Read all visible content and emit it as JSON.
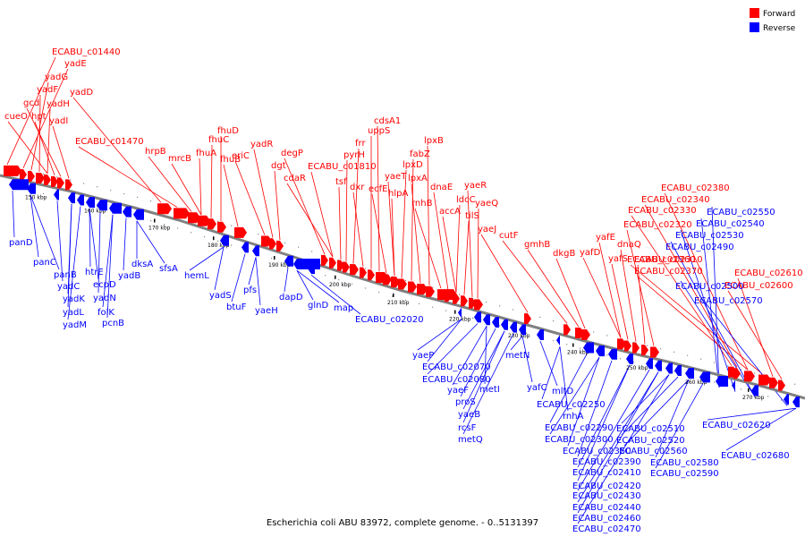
{
  "caption": "Escherichia coli ABU 83972, complete genome. - 0..5131397",
  "legend": [
    {
      "label": "Forward",
      "color": "#ff0000"
    },
    {
      "label": "Reverse",
      "color": "#0000ff"
    }
  ],
  "colors": {
    "forward": "#ff0000",
    "reverse": "#0000ff",
    "backbone": "#808080"
  },
  "tick_labels": [
    "150 kbp",
    "160 kbp",
    "170 kbp",
    "180 kbp",
    "190 kbp",
    "200 kbp",
    "210 kbp",
    "220 kbp",
    "230 kbp",
    "240 kbp",
    "250 kbp",
    "260 kbp",
    "270 kbp"
  ],
  "forward_genes": [
    "ECABU_c01440",
    "yadE",
    "yadG",
    "yadF",
    "yadH",
    "cueO",
    "hpt",
    "gcd",
    "yadI",
    "yadD",
    "ECABU_c01470",
    "hrpB",
    "mrcB",
    "fhuA",
    "fhuC",
    "fhuD",
    "fhuB",
    "eriC",
    "yadR",
    "dgt",
    "degP",
    "cdaR",
    "ECABU_c01810",
    "tsf",
    "pyrH",
    "frr",
    "dxr",
    "uppS",
    "cdsA1",
    "ecfE",
    "yaeT",
    "hlpA",
    "lpxD",
    "fabZ",
    "lpxA",
    "lpxB",
    "rnhB",
    "dnaE",
    "accA",
    "ldcC",
    "tilS",
    "yaeR",
    "yaeQ",
    "yaeJ",
    "cutF",
    "gmhB",
    "dkgB",
    "yafD",
    "yafE",
    "yafS",
    "dnaQ",
    "ECABU_c02310",
    "ECABU_c02320",
    "ECABU_c02330",
    "ECABU_c02340",
    "ECABU_c02380",
    "ECABU_c02370",
    "ECABU_c02360",
    "ECABU_c02610",
    "ECABU_c02600"
  ],
  "reverse_genes": [
    "panD",
    "panC",
    "panB",
    "yadC",
    "yadK",
    "yadL",
    "yadM",
    "htrE",
    "ecpD",
    "yadN",
    "folK",
    "pcnB",
    "yadB",
    "dksA",
    "sfsA",
    "hemL",
    "yadS",
    "btuF",
    "pfs",
    "yaeH",
    "dapD",
    "glnD",
    "map",
    "ECABU_c02020",
    "yaeP",
    "ECABU_c02070",
    "ECABU_c02080",
    "yaeF",
    "metI",
    "proS",
    "yaeB",
    "rcsF",
    "metQ",
    "metN",
    "yafC",
    "mltD",
    "ECABU_c02250",
    "rnhA",
    "ECABU_c02290",
    "ECABU_c02300",
    "ECABU_c02350",
    "ECABU_c02390",
    "ECABU_c02410",
    "ECABU_c02420",
    "ECABU_c02430",
    "ECABU_c02440",
    "ECABU_c02460",
    "ECABU_c02470",
    "ECABU_c02510",
    "ECABU_c02520",
    "ECABU_c02560",
    "ECABU_c02580",
    "ECABU_c02590",
    "ECABU_c02550",
    "ECABU_c02540",
    "ECABU_c02530",
    "ECABU_c02490",
    "ECABU_c02500",
    "ECABU_c02570",
    "ECABU_c02620",
    "ECABU_c02680"
  ]
}
